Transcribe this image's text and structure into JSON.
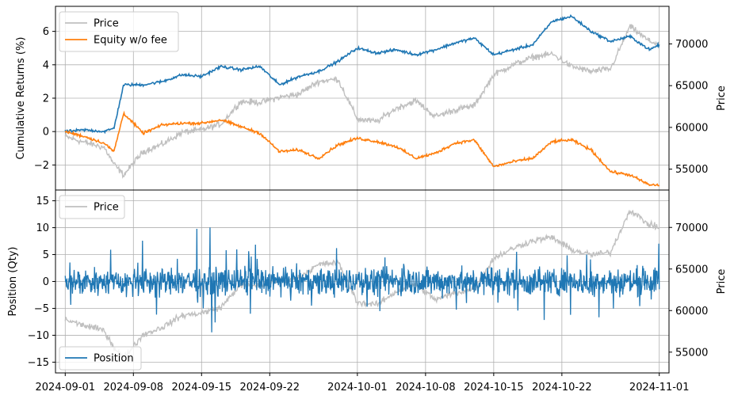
{
  "chart_data": [
    {
      "type": "line",
      "panel": "top",
      "ylabel": "Cumulative Returns (%)",
      "y2label": "Price",
      "ylim": [
        -3.5,
        7.5
      ],
      "y2lim": [
        52500,
        74500
      ],
      "yticks": [
        -2,
        0,
        2,
        4,
        6
      ],
      "yticklabels": [
        "−2",
        "0",
        "2",
        "4",
        "6"
      ],
      "y2ticks": [
        55000,
        60000,
        65000,
        70000
      ],
      "y2ticklabels": [
        "55000",
        "60000",
        "65000",
        "70000"
      ],
      "grid": true,
      "legend": {
        "placement": "top-left",
        "entries": [
          "Price",
          "Equity w/o fee"
        ]
      },
      "series": [
        {
          "name": "Price",
          "axis": "right",
          "color": "#c0c0c0",
          "x": [
            "2024-09-01",
            "2024-09-03",
            "2024-09-05",
            "2024-09-06",
            "2024-09-07",
            "2024-09-09",
            "2024-09-11",
            "2024-09-13",
            "2024-09-15",
            "2024-09-17",
            "2024-09-19",
            "2024-09-21",
            "2024-09-23",
            "2024-09-25",
            "2024-09-27",
            "2024-09-29",
            "2024-10-01",
            "2024-10-03",
            "2024-10-05",
            "2024-10-07",
            "2024-10-09",
            "2024-10-11",
            "2024-10-13",
            "2024-10-15",
            "2024-10-17",
            "2024-10-19",
            "2024-10-21",
            "2024-10-23",
            "2024-10-25",
            "2024-10-27",
            "2024-10-29",
            "2024-10-31",
            "2024-11-01"
          ],
          "values": [
            58900,
            58200,
            57600,
            55600,
            54300,
            57100,
            58000,
            59400,
            59700,
            60400,
            63100,
            63000,
            63600,
            64000,
            65500,
            65800,
            61000,
            60700,
            62300,
            63200,
            61300,
            62100,
            62600,
            66300,
            67500,
            68400,
            68800,
            67300,
            66700,
            67000,
            72100,
            70300,
            70000
          ]
        },
        {
          "name": "Cumulative Returns",
          "axis": "left",
          "color": "#1f77b4",
          "x": [
            "2024-09-01",
            "2024-09-03",
            "2024-09-05",
            "2024-09-06",
            "2024-09-07",
            "2024-09-09",
            "2024-09-11",
            "2024-09-13",
            "2024-09-15",
            "2024-09-17",
            "2024-09-19",
            "2024-09-21",
            "2024-09-23",
            "2024-09-25",
            "2024-09-27",
            "2024-09-29",
            "2024-10-01",
            "2024-10-03",
            "2024-10-05",
            "2024-10-07",
            "2024-10-09",
            "2024-10-11",
            "2024-10-13",
            "2024-10-15",
            "2024-10-17",
            "2024-10-19",
            "2024-10-21",
            "2024-10-23",
            "2024-10-25",
            "2024-10-27",
            "2024-10-29",
            "2024-10-31",
            "2024-11-01"
          ],
          "values": [
            0.0,
            0.1,
            0.0,
            0.2,
            2.8,
            2.8,
            3.0,
            3.4,
            3.3,
            3.9,
            3.7,
            3.9,
            2.8,
            3.3,
            3.6,
            4.2,
            5.0,
            4.7,
            4.9,
            4.6,
            4.9,
            5.3,
            5.6,
            4.6,
            4.9,
            5.2,
            6.6,
            6.9,
            6.0,
            5.4,
            5.7,
            4.9,
            5.2
          ]
        },
        {
          "name": "Equity w/o fee",
          "axis": "left",
          "color": "#ff7f0e",
          "x": [
            "2024-09-01",
            "2024-09-03",
            "2024-09-05",
            "2024-09-06",
            "2024-09-07",
            "2024-09-09",
            "2024-09-11",
            "2024-09-13",
            "2024-09-15",
            "2024-09-17",
            "2024-09-19",
            "2024-09-21",
            "2024-09-23",
            "2024-09-25",
            "2024-09-27",
            "2024-09-29",
            "2024-10-01",
            "2024-10-03",
            "2024-10-05",
            "2024-10-07",
            "2024-10-09",
            "2024-10-11",
            "2024-10-13",
            "2024-10-15",
            "2024-10-17",
            "2024-10-19",
            "2024-10-21",
            "2024-10-23",
            "2024-10-25",
            "2024-10-27",
            "2024-10-29",
            "2024-10-31",
            "2024-11-01"
          ],
          "values": [
            0.0,
            -0.3,
            -0.7,
            -1.2,
            1.1,
            -0.1,
            0.4,
            0.5,
            0.5,
            0.7,
            0.3,
            -0.1,
            -1.2,
            -1.1,
            -1.6,
            -0.8,
            -0.4,
            -0.6,
            -0.9,
            -1.6,
            -1.3,
            -0.7,
            -0.5,
            -2.1,
            -1.8,
            -1.6,
            -0.6,
            -0.5,
            -1.1,
            -2.4,
            -2.6,
            -3.2,
            -3.2
          ]
        }
      ]
    },
    {
      "type": "line",
      "panel": "bottom",
      "ylabel": "Position (Qty)",
      "y2label": "Price",
      "xlim": [
        "2024-08-31",
        "2024-11-02"
      ],
      "ylim": [
        -17,
        17
      ],
      "y2lim": [
        52500,
        74500
      ],
      "yticks": [
        -15,
        -10,
        -5,
        0,
        5,
        10,
        15
      ],
      "yticklabels": [
        "−15",
        "−10",
        "−5",
        "0",
        "5",
        "10",
        "15"
      ],
      "y2ticks": [
        55000,
        60000,
        65000,
        70000
      ],
      "y2ticklabels": [
        "55000",
        "60000",
        "65000",
        "70000"
      ],
      "xticks": [
        "2024-09-01",
        "2024-09-08",
        "2024-09-15",
        "2024-09-22",
        "2024-10-01",
        "2024-10-08",
        "2024-10-15",
        "2024-10-22",
        "2024-11-01"
      ],
      "xticklabels": [
        "2024-09-01",
        "2024-09-08",
        "2024-09-15",
        "2024-09-22",
        "2024-10-01",
        "2024-10-08",
        "2024-10-15",
        "2024-10-22",
        "2024-11-01"
      ],
      "grid": true,
      "legends": [
        {
          "placement": "top-left",
          "entries": [
            "Price"
          ]
        },
        {
          "placement": "bottom-left",
          "entries": [
            "Position"
          ]
        }
      ],
      "series": [
        {
          "name": "Price",
          "axis": "right",
          "color": "#c0c0c0",
          "x": [
            "2024-09-01",
            "2024-09-03",
            "2024-09-05",
            "2024-09-06",
            "2024-09-07",
            "2024-09-09",
            "2024-09-11",
            "2024-09-13",
            "2024-09-15",
            "2024-09-17",
            "2024-09-19",
            "2024-09-21",
            "2024-09-23",
            "2024-09-25",
            "2024-09-27",
            "2024-09-29",
            "2024-10-01",
            "2024-10-03",
            "2024-10-05",
            "2024-10-07",
            "2024-10-09",
            "2024-10-11",
            "2024-10-13",
            "2024-10-15",
            "2024-10-17",
            "2024-10-19",
            "2024-10-21",
            "2024-10-23",
            "2024-10-25",
            "2024-10-27",
            "2024-10-29",
            "2024-10-31",
            "2024-11-01"
          ],
          "values": [
            58900,
            58200,
            57600,
            55600,
            54300,
            57100,
            58000,
            59400,
            59700,
            60400,
            63100,
            63000,
            63600,
            64000,
            65500,
            65800,
            61000,
            60700,
            62300,
            63200,
            61300,
            62100,
            62600,
            66300,
            67500,
            68400,
            68800,
            67300,
            66700,
            67000,
            72100,
            70300,
            70000
          ]
        },
        {
          "name": "Position",
          "axis": "left",
          "color": "#1f77b4",
          "amplitude": [
            7,
            15
          ],
          "values_range": [
            -15.5,
            15.8
          ]
        }
      ]
    }
  ]
}
